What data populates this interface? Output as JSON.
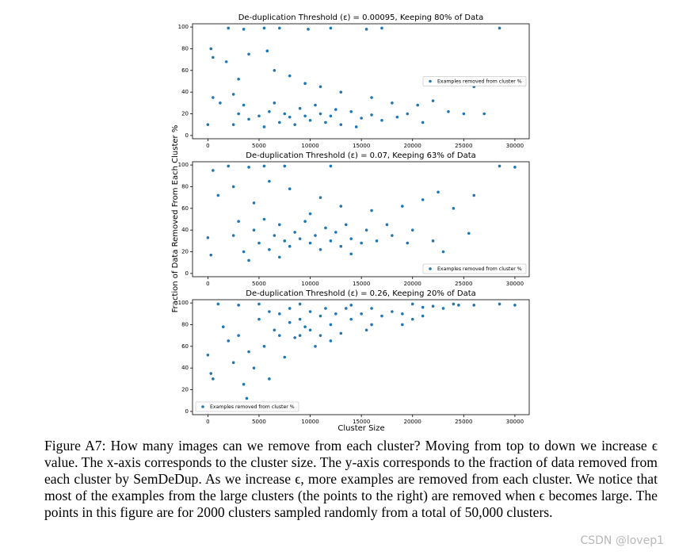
{
  "chart_data": [
    {
      "type": "scatter",
      "title": "De-duplication Threshold (ε) = 0.00095, Keeping 80% of Data",
      "xlim": [
        -1500,
        31400
      ],
      "ylim": [
        -3,
        103
      ],
      "xticks": [
        0,
        5000,
        10000,
        15000,
        20000,
        25000,
        30000
      ],
      "yticks": [
        0,
        20,
        40,
        60,
        80,
        100
      ],
      "legend": "center right",
      "series": [
        {
          "name": "Examples removed from cluster %",
          "color": "#1f77b4",
          "x": [
            2000,
            3500,
            5500,
            7000,
            9800,
            12000,
            15500,
            17000,
            28500,
            300,
            500,
            1800,
            4000,
            5800,
            6500,
            3000,
            8000,
            9500,
            11000,
            13000,
            2500,
            500,
            1200,
            16000,
            18000,
            20500,
            22000,
            23500,
            26000,
            3000,
            4000,
            5000,
            6000,
            7000,
            8000,
            9000,
            10000,
            11000,
            12000,
            13000,
            14000,
            15000,
            16000,
            17000,
            18500,
            19500,
            21000,
            2500,
            3500,
            5500,
            6500,
            7500,
            8500,
            9500,
            10500,
            11500,
            12500,
            14500,
            0,
            25000,
            27000
          ],
          "values": [
            99,
            98,
            99,
            99,
            98,
            99,
            98,
            99,
            99,
            80,
            72,
            68,
            75,
            78,
            60,
            52,
            55,
            48,
            45,
            40,
            38,
            35,
            30,
            35,
            30,
            28,
            32,
            22,
            45,
            20,
            15,
            18,
            22,
            12,
            17,
            25,
            14,
            20,
            18,
            10,
            22,
            16,
            19,
            14,
            17,
            20,
            12,
            10,
            28,
            8,
            30,
            20,
            10,
            18,
            28,
            12,
            24,
            8,
            10,
            20,
            20
          ]
        }
      ]
    },
    {
      "type": "scatter",
      "title": "De-duplication Threshold (ε) = 0.07, Keeping 63% of Data",
      "xlim": [
        -1500,
        31400
      ],
      "ylim": [
        -3,
        103
      ],
      "xticks": [
        0,
        5000,
        10000,
        15000,
        20000,
        25000,
        30000
      ],
      "yticks": [
        0,
        20,
        40,
        60,
        80,
        100
      ],
      "legend": "lower right",
      "series": [
        {
          "name": "Examples removed from cluster %",
          "color": "#1f77b4",
          "x": [
            2000,
            4000,
            5500,
            7500,
            12000,
            28500,
            30000,
            500,
            1000,
            2500,
            6000,
            8000,
            4500,
            11000,
            13000,
            16000,
            19000,
            21000,
            22500,
            26000,
            24000,
            17500,
            20000,
            0,
            300,
            2500,
            3500,
            4500,
            5000,
            5500,
            6000,
            6500,
            7000,
            7500,
            8000,
            8500,
            9000,
            9500,
            10000,
            10500,
            11000,
            11500,
            12000,
            12500,
            13000,
            13500,
            14000,
            15000,
            15500,
            16500,
            18000,
            19500,
            22000,
            23000,
            25500,
            4000,
            3000,
            10000,
            7000,
            14000
          ],
          "values": [
            99,
            98,
            99,
            99,
            99,
            99,
            98,
            95,
            72,
            80,
            85,
            78,
            65,
            70,
            62,
            58,
            62,
            68,
            75,
            72,
            60,
            45,
            40,
            33,
            17,
            35,
            20,
            40,
            28,
            50,
            22,
            35,
            45,
            30,
            25,
            38,
            32,
            48,
            28,
            35,
            22,
            42,
            30,
            38,
            25,
            45,
            32,
            28,
            40,
            30,
            35,
            28,
            30,
            20,
            37,
            12,
            48,
            55,
            15,
            18
          ]
        }
      ]
    },
    {
      "type": "scatter",
      "title": "De-duplication Threshold (ε) = 0.26, Keeping 20% of Data",
      "xlim": [
        -1500,
        31400
      ],
      "ylim": [
        -3,
        103
      ],
      "xticks": [
        0,
        5000,
        10000,
        15000,
        20000,
        25000,
        30000
      ],
      "yticks": [
        0,
        20,
        40,
        60,
        80,
        100
      ],
      "legend": "lower left",
      "series": [
        {
          "name": "Examples removed from cluster %",
          "color": "#1f77b4",
          "x": [
            1000,
            3000,
            5000,
            9000,
            14000,
            20000,
            24000,
            28500,
            0,
            300,
            500,
            1500,
            2000,
            2500,
            3000,
            3500,
            4000,
            4500,
            3800,
            5000,
            5500,
            6000,
            6500,
            7000,
            7500,
            8000,
            8500,
            9000,
            9500,
            10000,
            10500,
            11000,
            11500,
            12000,
            12500,
            13000,
            13500,
            14000,
            15000,
            15500,
            16000,
            17000,
            18000,
            19000,
            20000,
            21000,
            22000,
            23000,
            24500,
            26000,
            30000,
            6000,
            7000,
            8000,
            9000,
            10000,
            11000,
            12000,
            16000,
            19000,
            21000
          ],
          "values": [
            99,
            98,
            99,
            99,
            98,
            99,
            99,
            99,
            52,
            35,
            30,
            78,
            65,
            45,
            70,
            25,
            55,
            40,
            12,
            85,
            60,
            30,
            75,
            90,
            50,
            95,
            68,
            85,
            78,
            92,
            60,
            88,
            95,
            80,
            90,
            72,
            95,
            85,
            90,
            75,
            95,
            88,
            92,
            90,
            85,
            96,
            97,
            95,
            98,
            98,
            98,
            92,
            70,
            82,
            70,
            75,
            70,
            65,
            80,
            80,
            88
          ]
        }
      ]
    }
  ],
  "figure": {
    "ylabel": "Fraction of Data Removed From Each Cluster %",
    "xlabel": "Cluster Size"
  },
  "caption": "Figure A7: How many images can we remove from each cluster? Moving from top to down we increase ϵ value. The x-axis corresponds to the cluster size. The y-axis corresponds to the fraction of data removed from each cluster by SemDeDup. As we increase ϵ, more examples are removed from each cluster. We notice that most of the examples from the large clusters (the points to the right) are removed when ϵ becomes large. The points in this figure are for 2000 clusters sampled randomly from a total of 50,000 clusters.",
  "watermark": "CSDN @lovep1"
}
